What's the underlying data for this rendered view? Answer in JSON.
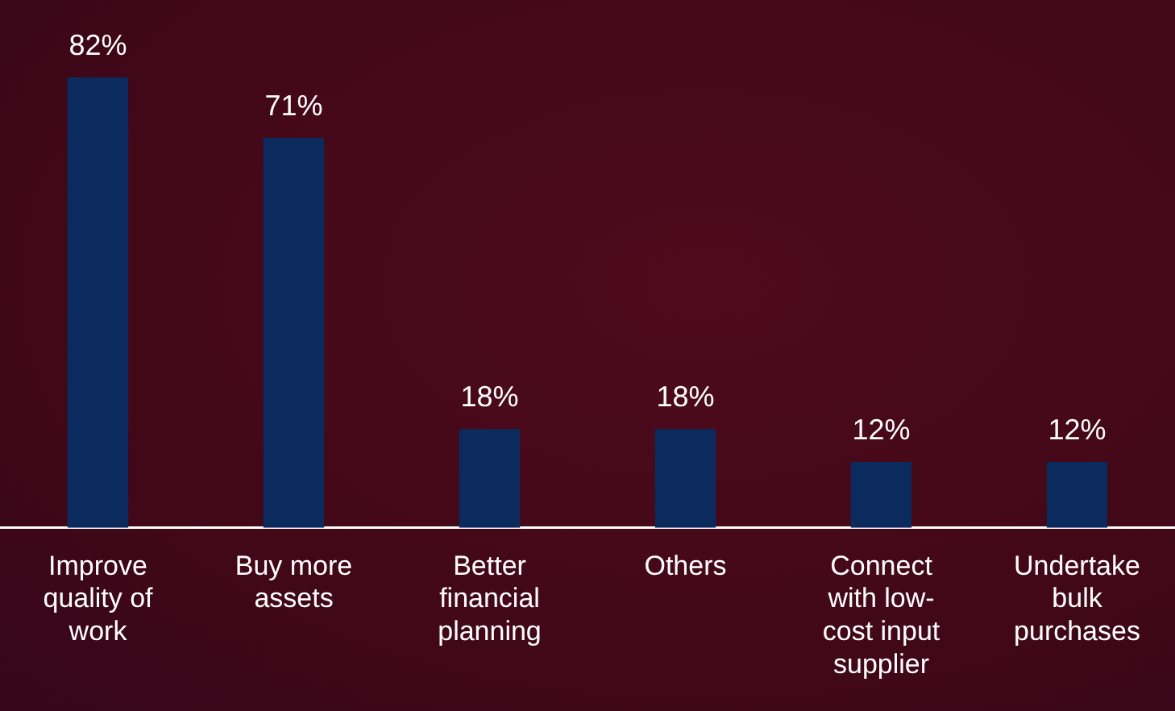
{
  "chart_data": {
    "type": "bar",
    "categories": [
      "Improve quality of work",
      "Buy more assets",
      "Better financial planning",
      "Others",
      "Connect with low-cost input supplier",
      "Undertake bulk purchases"
    ],
    "values": [
      82,
      71,
      18,
      18,
      12,
      12
    ],
    "value_labels": [
      "82%",
      "71%",
      "18%",
      "18%",
      "12%",
      "12%"
    ],
    "color": "#0b2a5e",
    "grid": false,
    "legend": false,
    "tick_labels": "x"
  }
}
